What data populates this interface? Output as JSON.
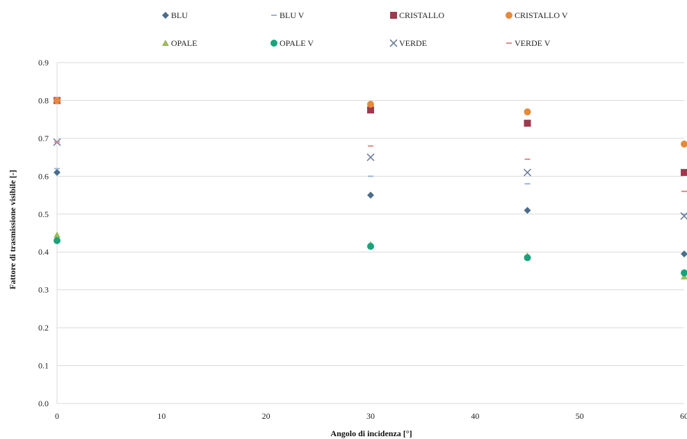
{
  "chart_data": {
    "type": "scatter",
    "xlabel": "Angolo di incidenza [°]",
    "ylabel": "Fattore di trasmissione visibile [-]",
    "xlim": [
      0,
      60
    ],
    "ylim": [
      0,
      0.9
    ],
    "x_ticks": [
      "0",
      "10",
      "20",
      "30",
      "40",
      "50",
      "60"
    ],
    "y_ticks": [
      "0.0",
      "0.1",
      "0.2",
      "0.3",
      "0.4",
      "0.5",
      "0.6",
      "0.7",
      "0.8",
      "0.9"
    ],
    "grid": "horizontal",
    "legend_position": "top",
    "series": [
      {
        "name": "BLU",
        "marker": "diamond",
        "color": "#4a6d8c",
        "x": [
          0,
          30,
          45,
          60
        ],
        "y": [
          0.61,
          0.55,
          0.51,
          0.395
        ]
      },
      {
        "name": "BLU V",
        "marker": "dash",
        "color": "#9bb5d4",
        "x": [
          0,
          30,
          45,
          60
        ],
        "y": [
          0.62,
          0.6,
          0.58,
          0.5
        ]
      },
      {
        "name": "CRISTALLO",
        "marker": "square",
        "color": "#9e3a4e",
        "x": [
          0,
          30,
          45,
          60
        ],
        "y": [
          0.8,
          0.775,
          0.74,
          0.61
        ]
      },
      {
        "name": "CRISTALLO V",
        "marker": "circle",
        "color": "#e48a3c",
        "x": [
          0,
          30,
          45,
          60
        ],
        "y": [
          0.8,
          0.79,
          0.77,
          0.685
        ]
      },
      {
        "name": "OPALE",
        "marker": "triangle",
        "color": "#9bbb59",
        "x": [
          0,
          30,
          45,
          60
        ],
        "y": [
          0.445,
          0.42,
          0.39,
          0.335
        ]
      },
      {
        "name": "OPALE V",
        "marker": "circle",
        "color": "#1aa37a",
        "x": [
          0,
          30,
          45,
          60
        ],
        "y": [
          0.43,
          0.415,
          0.385,
          0.345
        ]
      },
      {
        "name": "VERDE",
        "marker": "x",
        "color": "#6f7f99",
        "x": [
          0,
          30,
          45,
          60
        ],
        "y": [
          0.69,
          0.65,
          0.61,
          0.495
        ]
      },
      {
        "name": "VERDE V",
        "marker": "dash",
        "color": "#d98c8c",
        "x": [
          0,
          30,
          45,
          60
        ],
        "y": [
          0.69,
          0.68,
          0.645,
          0.56
        ]
      }
    ]
  }
}
